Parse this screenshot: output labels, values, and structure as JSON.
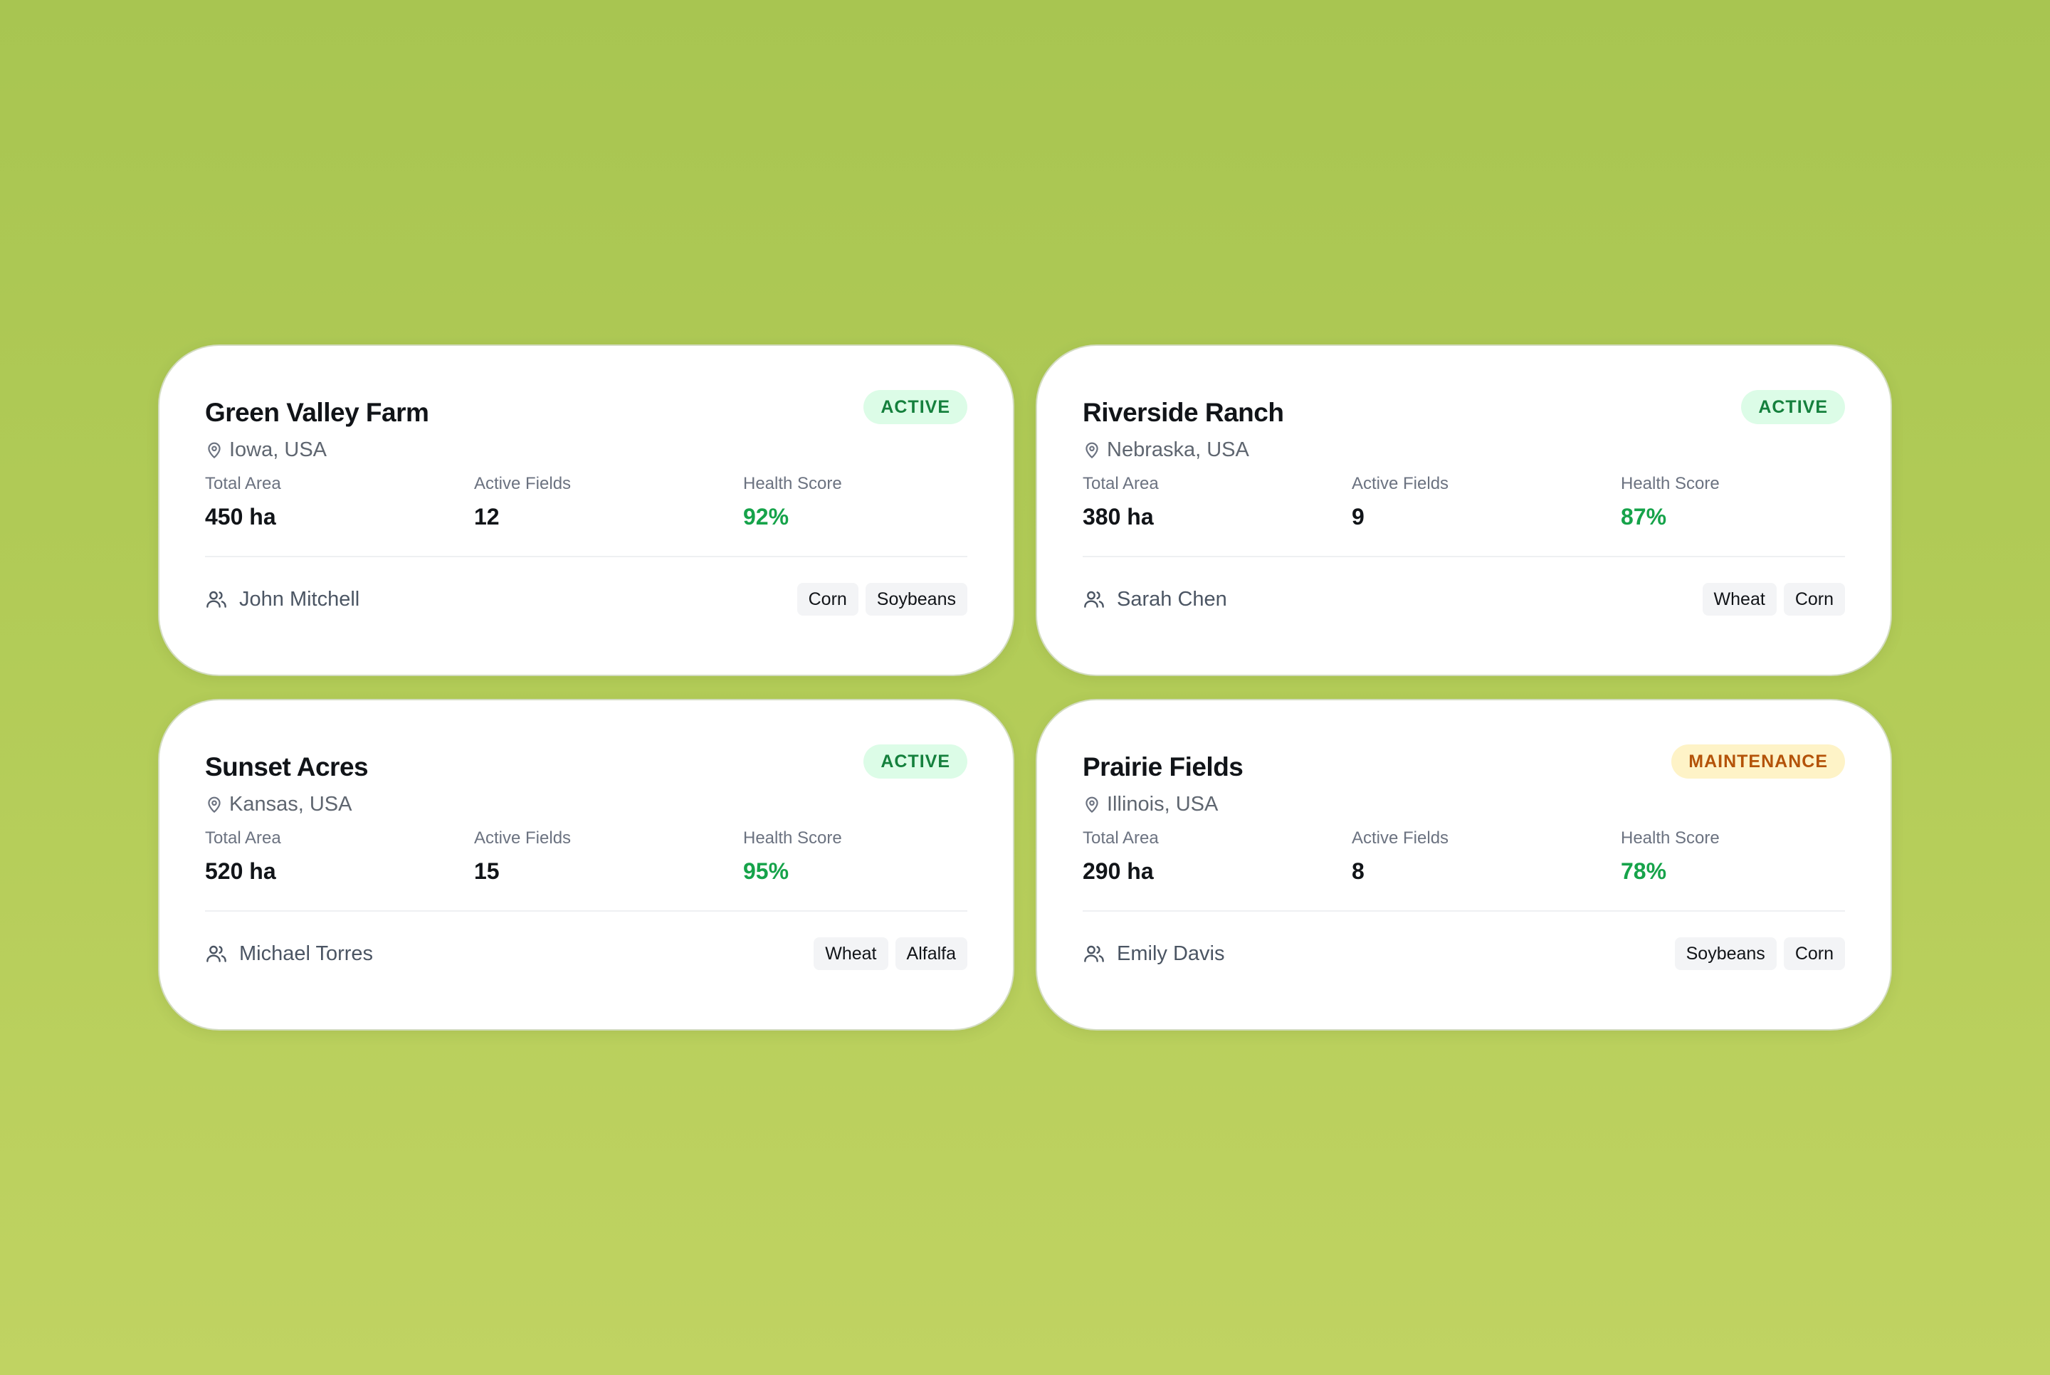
{
  "labels": {
    "total_area": "Total Area",
    "active_fields": "Active Fields",
    "health_score": "Health Score"
  },
  "colors": {
    "active_bg": "#dcfce7",
    "active_text": "#15803d",
    "maintenance_bg": "#fef3c7",
    "maintenance_text": "#b45309",
    "health_text": "#16a34a"
  },
  "icons": {
    "location": "map-pin-icon",
    "owner": "users-icon"
  },
  "farms": [
    {
      "name": "Green Valley Farm",
      "location": "Iowa, USA",
      "status": "ACTIVE",
      "total_area": "450 ha",
      "active_fields": "12",
      "health_score": "92%",
      "owner": "John Mitchell",
      "crops": [
        "Corn",
        "Soybeans"
      ]
    },
    {
      "name": "Riverside Ranch",
      "location": "Nebraska, USA",
      "status": "ACTIVE",
      "total_area": "380 ha",
      "active_fields": "9",
      "health_score": "87%",
      "owner": "Sarah Chen",
      "crops": [
        "Wheat",
        "Corn"
      ]
    },
    {
      "name": "Sunset Acres",
      "location": "Kansas, USA",
      "status": "ACTIVE",
      "total_area": "520 ha",
      "active_fields": "15",
      "health_score": "95%",
      "owner": "Michael Torres",
      "crops": [
        "Wheat",
        "Alfalfa"
      ]
    },
    {
      "name": "Prairie Fields",
      "location": "Illinois, USA",
      "status": "MAINTENANCE",
      "total_area": "290 ha",
      "active_fields": "8",
      "health_score": "78%",
      "owner": "Emily Davis",
      "crops": [
        "Soybeans",
        "Corn"
      ]
    }
  ]
}
